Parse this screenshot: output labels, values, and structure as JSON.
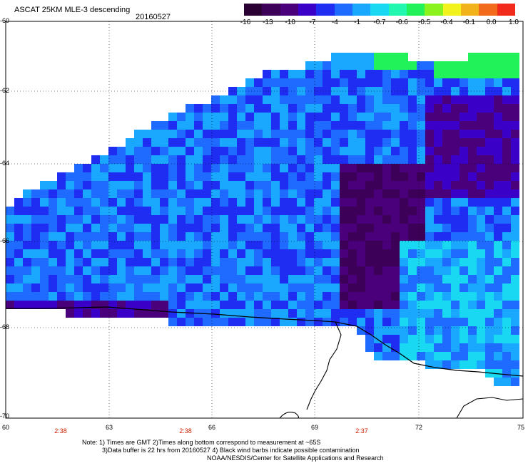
{
  "title": {
    "product": "ASCAT 25KM MLE-3 descending",
    "date": "20160527"
  },
  "colorbar": {
    "labels": [
      "-16",
      "-13",
      "-10",
      "-7",
      "-4",
      "-1",
      "-0.7",
      "-0.6",
      "-0.5",
      "-0.4",
      "-0.1",
      "0.0",
      "1.0"
    ],
    "colors": [
      "#2a0033",
      "#3d0058",
      "#4a007a",
      "#3a00c8",
      "#1f2cf2",
      "#1f6bff",
      "#1aa8ff",
      "#18d8f2",
      "#22f7b0",
      "#22f25a",
      "#8af21c",
      "#f2f21c",
      "#f2b21c",
      "#f26a1c",
      "#f22a1c"
    ]
  },
  "axes": {
    "lat_labels": [
      "-60",
      "-62",
      "-64",
      "-66",
      "-68",
      "-70"
    ],
    "lon_labels": [
      "60",
      "63",
      "66",
      "69",
      "72",
      "75"
    ]
  },
  "pass_times": [
    "2:38",
    "2:38",
    "2:37"
  ],
  "notes": {
    "line1": "Note: 1) Times are GMT 2)Times along bottom correspond to measurement at ~65S",
    "line2": "3)Data buffer is 22 hrs from 20160527 4) Black wind barbs indicate possible contamination",
    "line3": "NOAA/NESDIS/Center for Satellite Applications and Research"
  }
}
